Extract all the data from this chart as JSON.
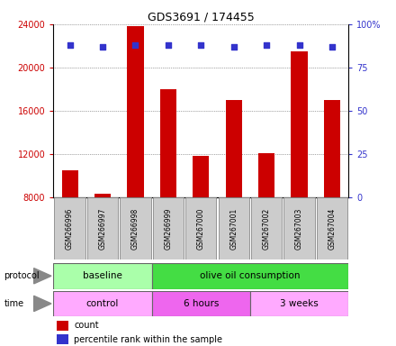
{
  "title": "GDS3691 / 174455",
  "samples": [
    "GSM266996",
    "GSM266997",
    "GSM266998",
    "GSM266999",
    "GSM267000",
    "GSM267001",
    "GSM267002",
    "GSM267003",
    "GSM267004"
  ],
  "counts": [
    10500,
    8300,
    23800,
    18000,
    11800,
    17000,
    12100,
    21500,
    17000
  ],
  "percentile_ranks": [
    88,
    87,
    88,
    88,
    88,
    87,
    88,
    88,
    87
  ],
  "y_min": 8000,
  "y_max": 24000,
  "y_ticks": [
    8000,
    12000,
    16000,
    20000,
    24000
  ],
  "right_y_ticks": [
    0,
    25,
    50,
    75,
    100
  ],
  "right_y_labels": [
    "0",
    "25",
    "50",
    "75",
    "100%"
  ],
  "bar_color": "#cc0000",
  "dot_color": "#3333cc",
  "protocol_groups": [
    {
      "label": "baseline",
      "start": 0,
      "end": 3,
      "color": "#aaffaa"
    },
    {
      "label": "olive oil consumption",
      "start": 3,
      "end": 9,
      "color": "#44dd44"
    }
  ],
  "time_groups": [
    {
      "label": "control",
      "start": 0,
      "end": 3,
      "color": "#ffaaff"
    },
    {
      "label": "6 hours",
      "start": 3,
      "end": 6,
      "color": "#ee66ee"
    },
    {
      "label": "3 weeks",
      "start": 6,
      "end": 9,
      "color": "#ffaaff"
    }
  ],
  "legend_count_label": "count",
  "legend_pct_label": "percentile rank within the sample",
  "background_color": "#ffffff",
  "left_label_color": "#cc0000",
  "right_label_color": "#3333cc",
  "label_box_color": "#cccccc",
  "grid_color": "#555555"
}
